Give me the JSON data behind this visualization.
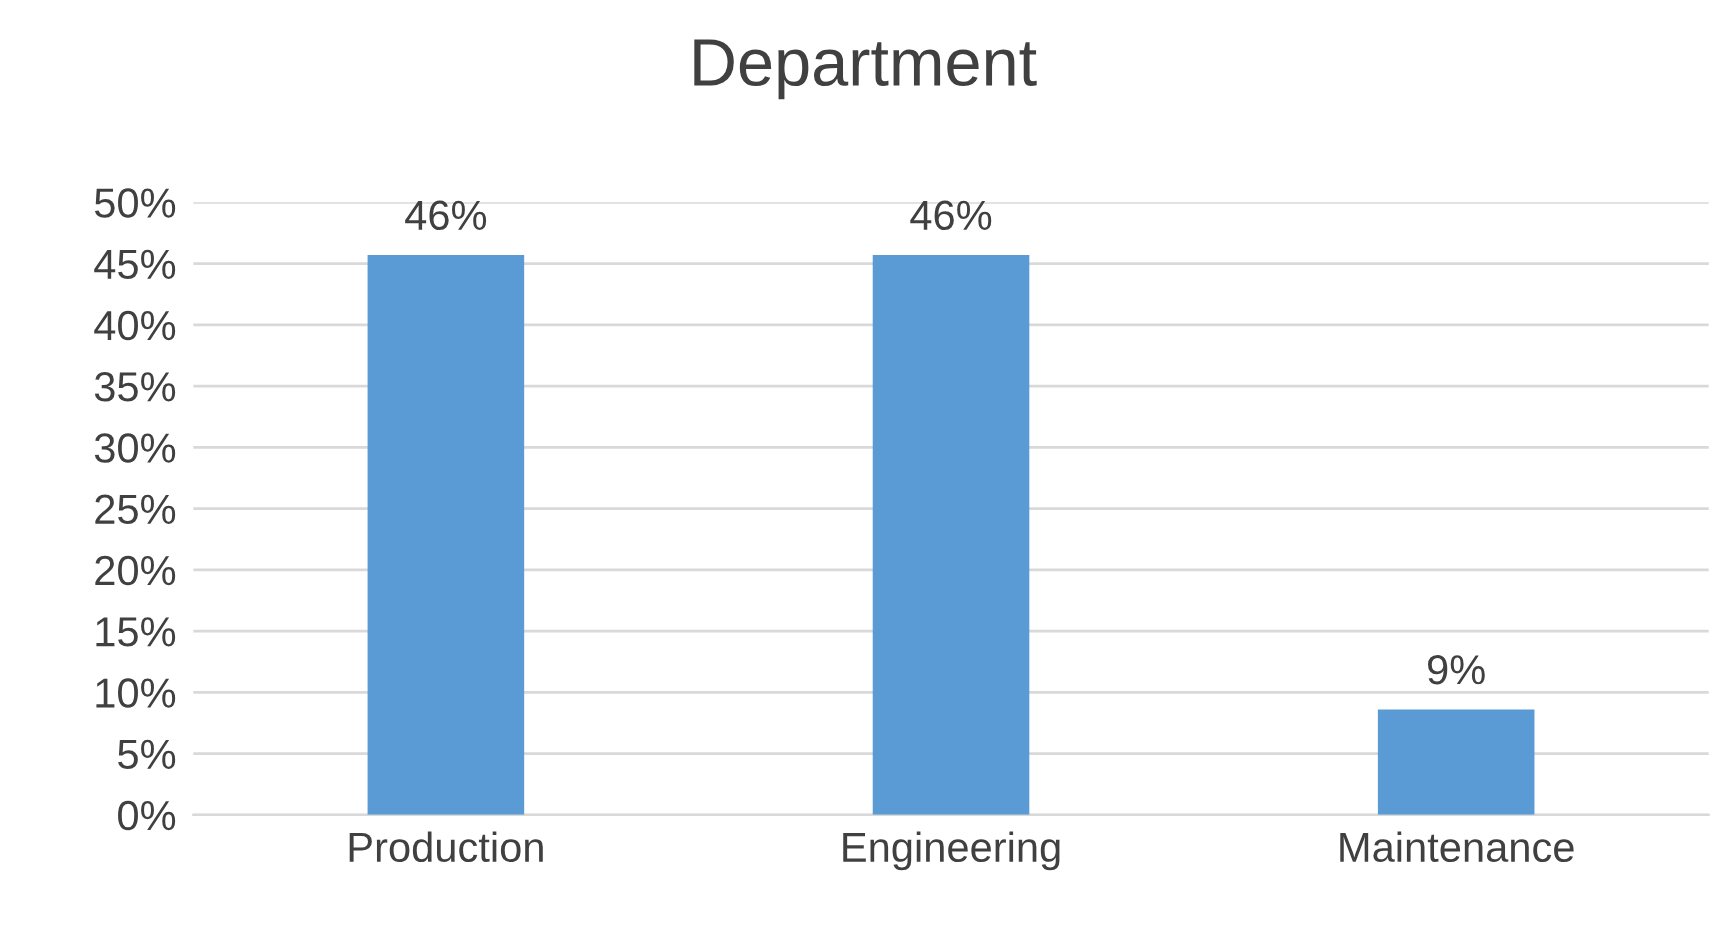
{
  "chart_data": {
    "type": "bar",
    "title": "Department",
    "categories": [
      "Production",
      "Engineering",
      "Maintenance"
    ],
    "values": [
      45.7,
      45.7,
      8.6
    ],
    "value_labels": [
      "46%",
      "46%",
      "9%"
    ],
    "color": "#5b9bd5",
    "ylim": [
      0,
      50
    ],
    "yticks": [
      {
        "value": 0,
        "label": "0%"
      },
      {
        "value": 5,
        "label": "5%"
      },
      {
        "value": 10,
        "label": "10%"
      },
      {
        "value": 15,
        "label": "15%"
      },
      {
        "value": 20,
        "label": "20%"
      },
      {
        "value": 25,
        "label": "25%"
      },
      {
        "value": 30,
        "label": "30%"
      },
      {
        "value": 35,
        "label": "35%"
      },
      {
        "value": 40,
        "label": "40%"
      },
      {
        "value": 45,
        "label": "45%"
      },
      {
        "value": 50,
        "label": "50%"
      }
    ],
    "grid": "y",
    "legend": false
  }
}
